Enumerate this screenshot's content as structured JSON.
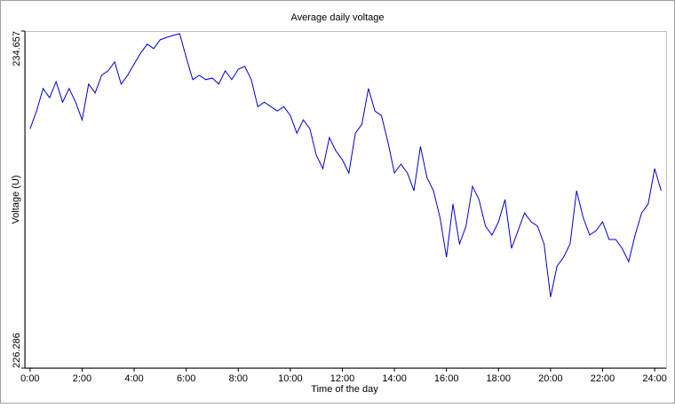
{
  "chart_data": {
    "type": "line",
    "title": "Average daily voltage",
    "x_label": "Time of the day",
    "y_label": "Voltage (U)",
    "x": [
      0,
      0.25,
      0.5,
      0.75,
      1,
      1.25,
      1.5,
      1.75,
      2,
      2.25,
      2.5,
      2.75,
      3,
      3.25,
      3.5,
      3.75,
      4,
      4.25,
      4.5,
      4.75,
      5,
      5.25,
      5.5,
      5.75,
      6,
      6.25,
      6.5,
      6.75,
      7,
      7.25,
      7.5,
      7.75,
      8,
      8.25,
      8.5,
      8.75,
      9,
      9.25,
      9.5,
      9.75,
      10,
      10.25,
      10.5,
      10.75,
      11,
      11.25,
      11.5,
      11.75,
      12,
      12.25,
      12.5,
      12.75,
      13,
      13.25,
      13.5,
      13.75,
      14,
      14.25,
      14.5,
      14.75,
      15,
      15.25,
      15.5,
      15.75,
      16,
      16.25,
      16.5,
      16.75,
      17,
      17.25,
      17.5,
      17.75,
      18,
      18.25,
      18.5,
      18.75,
      19,
      19.25,
      19.5,
      19.75,
      20,
      20.25,
      20.5,
      20.75,
      21,
      21.25,
      21.5,
      21.75,
      22,
      22.25,
      22.5,
      22.75,
      23,
      23.25,
      23.5,
      23.75,
      24,
      24.25
    ],
    "series": [
      {
        "name": "Voltage",
        "color": "#0000cc",
        "values": [
          232.23,
          232.67,
          233.23,
          233.0,
          233.4,
          232.89,
          233.23,
          232.89,
          232.45,
          233.34,
          233.12,
          233.56,
          233.67,
          233.89,
          233.34,
          233.56,
          233.84,
          234.11,
          234.33,
          234.22,
          234.44,
          234.5,
          234.55,
          234.59,
          234.0,
          233.45,
          233.56,
          233.45,
          233.49,
          233.34,
          233.67,
          233.45,
          233.71,
          233.78,
          233.45,
          232.78,
          232.89,
          232.78,
          232.67,
          232.78,
          232.56,
          232.12,
          232.45,
          232.23,
          231.57,
          231.24,
          232.01,
          231.68,
          231.46,
          231.13,
          232.12,
          232.34,
          233.23,
          232.67,
          232.56,
          231.9,
          231.13,
          231.35,
          231.13,
          230.69,
          231.79,
          231.02,
          230.69,
          230.03,
          229.04,
          230.36,
          229.37,
          229.81,
          230.8,
          230.47,
          229.81,
          229.59,
          229.92,
          230.47,
          229.26,
          229.7,
          230.14,
          229.92,
          229.81,
          229.37,
          228.05,
          228.82,
          229.04,
          229.37,
          230.69,
          230.03,
          229.59,
          229.7,
          229.92,
          229.48,
          229.48,
          229.26,
          228.93,
          229.59,
          230.14,
          230.36,
          231.24,
          230.69
        ]
      }
    ],
    "xlim": [
      -0.2,
      24.44
    ],
    "ylim": [
      226.286,
      234.657
    ],
    "xticks": [
      {
        "value": 0,
        "label": "0:00"
      },
      {
        "value": 2,
        "label": "2:00"
      },
      {
        "value": 4,
        "label": "4:00"
      },
      {
        "value": 6,
        "label": "6:00"
      },
      {
        "value": 8,
        "label": "8:00"
      },
      {
        "value": 10,
        "label": "10:00"
      },
      {
        "value": 12,
        "label": "12:00"
      },
      {
        "value": 14,
        "label": "14:00"
      },
      {
        "value": 16,
        "label": "16:00"
      },
      {
        "value": 18,
        "label": "18:00"
      },
      {
        "value": 20,
        "label": "20:00"
      },
      {
        "value": 22,
        "label": "22:00"
      },
      {
        "value": 24,
        "label": "24:00"
      }
    ],
    "yticks": [
      226.286,
      234.657
    ]
  }
}
